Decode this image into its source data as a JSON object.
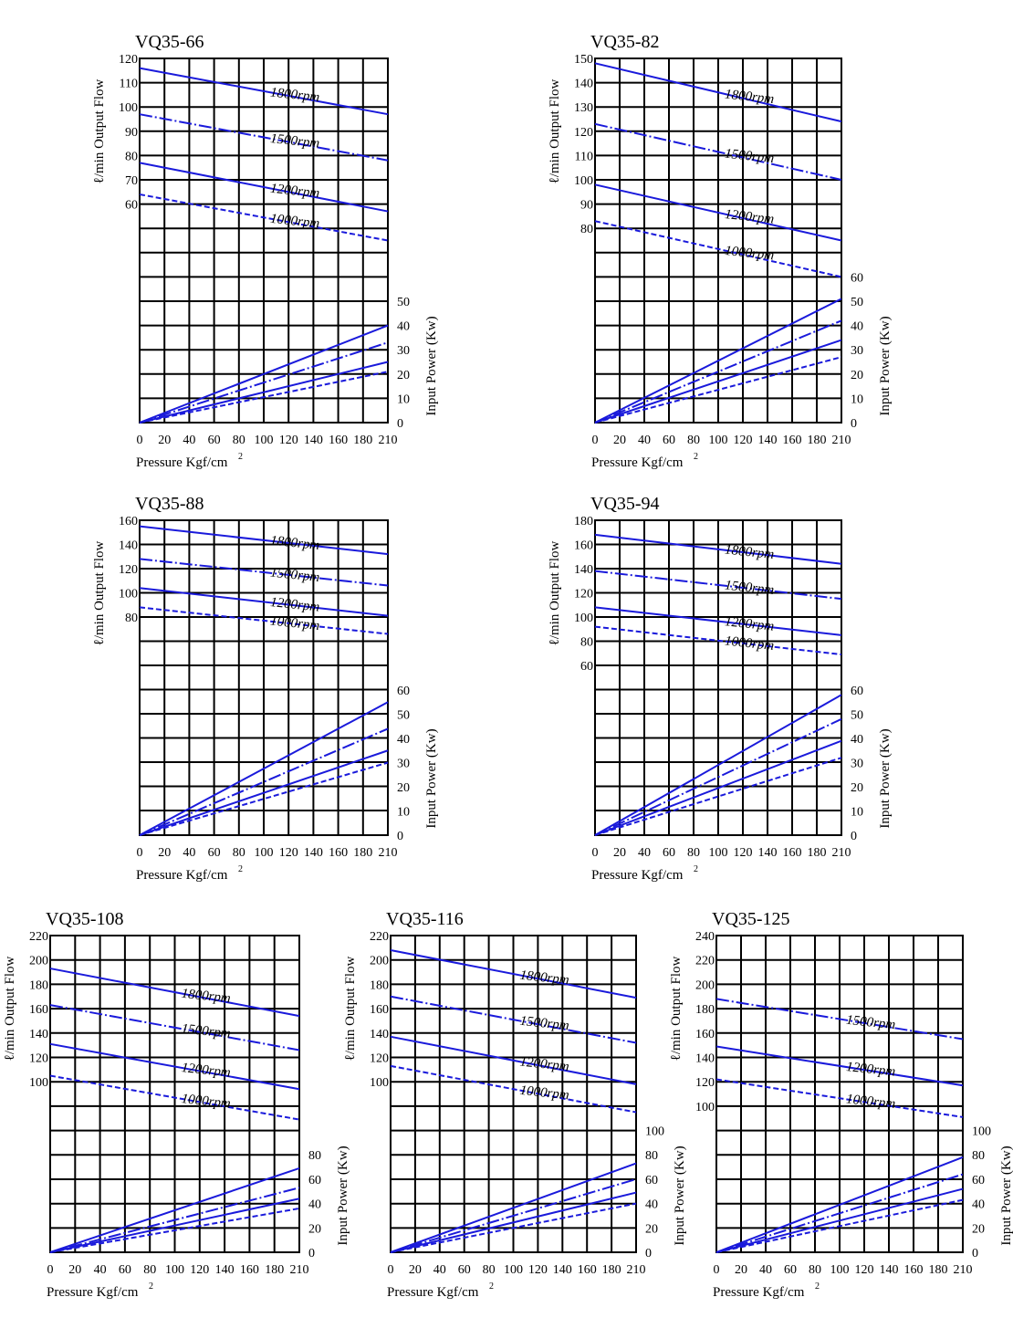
{
  "colors": {
    "series": "#1a1adb",
    "grid": "#000000"
  },
  "chart_data": [
    {
      "type": "line",
      "title": "VQ35-66",
      "xlabel": "Pressure Kgf/cm",
      "xlabel_sup": "2",
      "ylabel": "ℓ/min Output Flow",
      "y2label": "Input Power (Kw)",
      "x_ticks": [
        "0",
        "20",
        "40",
        "60",
        "80",
        "100",
        "120",
        "140",
        "160",
        "180",
        "210"
      ],
      "xlim": [
        0,
        210
      ],
      "flow_ticks": [
        60,
        70,
        80,
        90,
        100,
        110,
        120
      ],
      "flow_top": 120,
      "power_ticks": [
        0,
        10,
        20,
        30,
        40,
        50
      ],
      "flow_series": [
        {
          "name": "1800rpm",
          "x": [
            0,
            210
          ],
          "y": [
            116,
            97
          ]
        },
        {
          "name": "1500rpm",
          "x": [
            0,
            210
          ],
          "y": [
            97,
            78
          ]
        },
        {
          "name": "1200rpm",
          "x": [
            0,
            210
          ],
          "y": [
            77,
            57
          ]
        },
        {
          "name": "1000rpm",
          "x": [
            0,
            210
          ],
          "y": [
            64,
            45
          ]
        }
      ],
      "power_series": [
        {
          "x": [
            0,
            210
          ],
          "y": [
            0,
            40
          ]
        },
        {
          "x": [
            0,
            210
          ],
          "y": [
            0,
            33
          ]
        },
        {
          "x": [
            0,
            210
          ],
          "y": [
            0,
            25
          ]
        },
        {
          "x": [
            0,
            210
          ],
          "y": [
            0,
            21
          ]
        }
      ]
    },
    {
      "type": "line",
      "title": "VQ35-82",
      "xlabel": "Pressure Kgf/cm",
      "xlabel_sup": "2",
      "ylabel": "ℓ/min Output Flow",
      "y2label": "Input Power (Kw)",
      "x_ticks": [
        "0",
        "20",
        "40",
        "60",
        "80",
        "100",
        "120",
        "140",
        "160",
        "180",
        "210"
      ],
      "xlim": [
        0,
        210
      ],
      "flow_ticks": [
        80,
        90,
        100,
        110,
        120,
        130,
        140,
        150
      ],
      "flow_top": 150,
      "power_ticks": [
        0,
        10,
        20,
        30,
        40,
        50,
        60
      ],
      "flow_series": [
        {
          "name": "1800rpm",
          "x": [
            0,
            210
          ],
          "y": [
            148,
            124
          ]
        },
        {
          "name": "1500rpm",
          "x": [
            0,
            210
          ],
          "y": [
            123,
            100
          ]
        },
        {
          "name": "1200rpm",
          "x": [
            0,
            210
          ],
          "y": [
            98,
            75
          ]
        },
        {
          "name": "1000rpm",
          "x": [
            0,
            210
          ],
          "y": [
            83,
            60
          ]
        }
      ],
      "power_series": [
        {
          "x": [
            0,
            210
          ],
          "y": [
            0,
            51
          ]
        },
        {
          "x": [
            0,
            210
          ],
          "y": [
            0,
            42
          ]
        },
        {
          "x": [
            0,
            210
          ],
          "y": [
            0,
            34
          ]
        },
        {
          "x": [
            0,
            210
          ],
          "y": [
            0,
            27
          ]
        }
      ]
    },
    {
      "type": "line",
      "title": "VQ35-88",
      "xlabel": "Pressure Kgf/cm",
      "xlabel_sup": "2",
      "ylabel": "ℓ/min Output Flow",
      "y2label": "Input Power (Kw)",
      "x_ticks": [
        "0",
        "20",
        "40",
        "60",
        "80",
        "100",
        "120",
        "140",
        "160",
        "180",
        "210"
      ],
      "xlim": [
        0,
        210
      ],
      "flow_ticks": [
        80,
        100,
        120,
        140,
        160
      ],
      "flow_top": 160,
      "power_ticks": [
        0,
        10,
        20,
        30,
        40,
        50,
        60
      ],
      "flow_series": [
        {
          "name": "1800rpm",
          "x": [
            0,
            210
          ],
          "y": [
            155,
            132
          ]
        },
        {
          "name": "1500rpm",
          "x": [
            0,
            210
          ],
          "y": [
            128,
            106
          ]
        },
        {
          "name": "1200rpm",
          "x": [
            0,
            210
          ],
          "y": [
            104,
            81
          ]
        },
        {
          "name": "1000rpm",
          "x": [
            0,
            210
          ],
          "y": [
            88,
            66
          ]
        }
      ],
      "power_series": [
        {
          "x": [
            0,
            210
          ],
          "y": [
            0,
            55
          ]
        },
        {
          "x": [
            0,
            210
          ],
          "y": [
            0,
            44
          ]
        },
        {
          "x": [
            0,
            210
          ],
          "y": [
            0,
            35
          ]
        },
        {
          "x": [
            0,
            210
          ],
          "y": [
            0,
            30
          ]
        }
      ]
    },
    {
      "type": "line",
      "title": "VQ35-94",
      "xlabel": "Pressure Kgf/cm",
      "xlabel_sup": "2",
      "ylabel": "ℓ/min Output Flow",
      "y2label": "Input Power (Kw)",
      "x_ticks": [
        "0",
        "20",
        "40",
        "60",
        "80",
        "100",
        "120",
        "140",
        "160",
        "180",
        "210"
      ],
      "xlim": [
        0,
        210
      ],
      "flow_ticks": [
        60,
        80,
        100,
        120,
        140,
        160,
        180
      ],
      "flow_top": 180,
      "power_ticks": [
        0,
        10,
        20,
        30,
        40,
        50,
        60
      ],
      "flow_series": [
        {
          "name": "1800rpm",
          "x": [
            0,
            210
          ],
          "y": [
            168,
            144
          ]
        },
        {
          "name": "1500rpm",
          "x": [
            0,
            210
          ],
          "y": [
            138,
            115
          ]
        },
        {
          "name": "1200rpm",
          "x": [
            0,
            210
          ],
          "y": [
            108,
            85
          ]
        },
        {
          "name": "1000rpm",
          "x": [
            0,
            210
          ],
          "y": [
            92,
            69
          ]
        }
      ],
      "power_series": [
        {
          "x": [
            0,
            210
          ],
          "y": [
            0,
            58
          ]
        },
        {
          "x": [
            0,
            210
          ],
          "y": [
            0,
            48
          ]
        },
        {
          "x": [
            0,
            210
          ],
          "y": [
            0,
            39
          ]
        },
        {
          "x": [
            0,
            210
          ],
          "y": [
            0,
            32
          ]
        }
      ]
    },
    {
      "type": "line",
      "title": "VQ35-108",
      "xlabel": "Pressure Kgf/cm",
      "xlabel_sup": "2",
      "ylabel": "ℓ/min Output Flow",
      "y2label": "Input Power (Kw)",
      "x_ticks": [
        "0",
        "20",
        "40",
        "60",
        "80",
        "100",
        "120",
        "140",
        "160",
        "180",
        "210"
      ],
      "xlim": [
        0,
        210
      ],
      "flow_ticks": [
        100,
        120,
        140,
        160,
        180,
        200,
        220
      ],
      "flow_top": 220,
      "power_ticks": [
        0,
        20,
        40,
        60,
        80
      ],
      "flow_series": [
        {
          "name": "1800rpm",
          "x": [
            0,
            210
          ],
          "y": [
            193,
            154
          ]
        },
        {
          "name": "1500rpm",
          "x": [
            0,
            210
          ],
          "y": [
            163,
            126
          ]
        },
        {
          "name": "1200rpm",
          "x": [
            0,
            210
          ],
          "y": [
            131,
            94
          ]
        },
        {
          "name": "1000rpm",
          "x": [
            0,
            210
          ],
          "y": [
            105,
            69
          ]
        }
      ],
      "power_series": [
        {
          "x": [
            0,
            210
          ],
          "y": [
            0,
            69
          ]
        },
        {
          "x": [
            0,
            210
          ],
          "y": [
            0,
            53
          ]
        },
        {
          "x": [
            0,
            210
          ],
          "y": [
            0,
            44
          ]
        },
        {
          "x": [
            0,
            210
          ],
          "y": [
            0,
            36
          ]
        }
      ]
    },
    {
      "type": "line",
      "title": "VQ35-116",
      "xlabel": "Pressure Kgf/cm",
      "xlabel_sup": "2",
      "ylabel": "ℓ/min Output Flow",
      "y2label": "Input Power (Kw)",
      "x_ticks": [
        "0",
        "20",
        "40",
        "60",
        "80",
        "100",
        "120",
        "140",
        "160",
        "180",
        "210"
      ],
      "xlim": [
        0,
        210
      ],
      "flow_ticks": [
        100,
        120,
        140,
        160,
        180,
        200,
        220
      ],
      "flow_top": 220,
      "power_ticks": [
        0,
        20,
        40,
        60,
        80,
        100
      ],
      "flow_series": [
        {
          "name": "1800rpm",
          "x": [
            0,
            210
          ],
          "y": [
            208,
            169
          ]
        },
        {
          "name": "1500rpm",
          "x": [
            0,
            210
          ],
          "y": [
            170,
            132
          ]
        },
        {
          "name": "1200rpm",
          "x": [
            0,
            210
          ],
          "y": [
            137,
            98
          ]
        },
        {
          "name": "1000rpm",
          "x": [
            0,
            210
          ],
          "y": [
            113,
            75
          ]
        }
      ],
      "power_series": [
        {
          "x": [
            0,
            210
          ],
          "y": [
            0,
            73
          ]
        },
        {
          "x": [
            0,
            210
          ],
          "y": [
            0,
            60
          ]
        },
        {
          "x": [
            0,
            210
          ],
          "y": [
            0,
            49
          ]
        },
        {
          "x": [
            0,
            210
          ],
          "y": [
            0,
            40
          ]
        }
      ]
    },
    {
      "type": "line",
      "title": "VQ35-125",
      "xlabel": "Pressure Kgf/cm",
      "xlabel_sup": "2",
      "ylabel": "ℓ/min Output Flow",
      "y2label": "Input Power (Kw)",
      "x_ticks": [
        "0",
        "20",
        "40",
        "60",
        "80",
        "100",
        "120",
        "140",
        "160",
        "180",
        "210"
      ],
      "xlim": [
        0,
        210
      ],
      "flow_ticks": [
        100,
        120,
        140,
        160,
        180,
        200,
        220,
        240
      ],
      "flow_top": 240,
      "power_ticks": [
        0,
        20,
        40,
        60,
        80,
        100
      ],
      "flow_series": [
        {
          "name": "1500rpm",
          "x": [
            0,
            210
          ],
          "y": [
            188,
            155
          ]
        },
        {
          "name": "1200rpm",
          "x": [
            0,
            210
          ],
          "y": [
            149,
            117
          ]
        },
        {
          "name": "1000rpm",
          "x": [
            0,
            210
          ],
          "y": [
            122,
            91
          ]
        }
      ],
      "power_series": [
        {
          "x": [
            0,
            210
          ],
          "y": [
            0,
            78
          ]
        },
        {
          "x": [
            0,
            210
          ],
          "y": [
            0,
            64
          ]
        },
        {
          "x": [
            0,
            210
          ],
          "y": [
            0,
            52
          ]
        },
        {
          "x": [
            0,
            210
          ],
          "y": [
            0,
            43
          ]
        }
      ]
    }
  ]
}
